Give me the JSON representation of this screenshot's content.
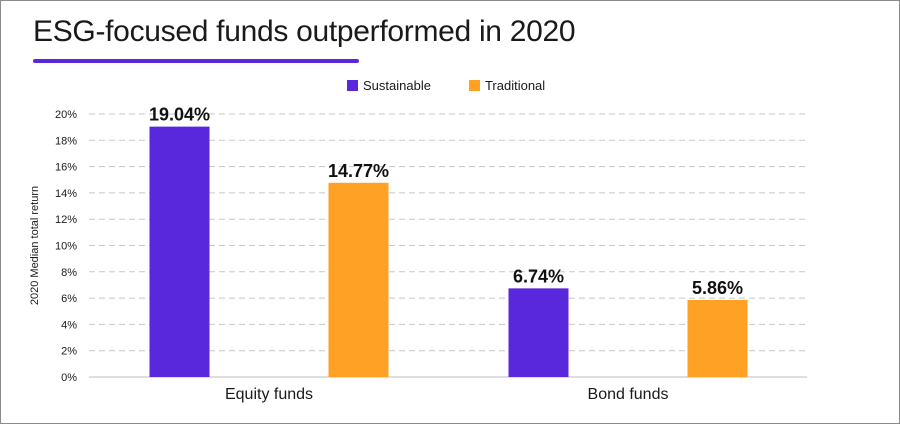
{
  "title": "ESG-focused funds outperformed in 2020",
  "colors": {
    "accent": "#5a28dc",
    "sustainable": "#5a28dc",
    "traditional": "#ffa125",
    "grid": "#c8c8c8",
    "text": "#1a1a1a"
  },
  "chart_data": {
    "type": "bar",
    "title": "ESG-focused funds outperformed in 2020",
    "xlabel": "",
    "ylabel": "2020 Median total return",
    "categories": [
      "Equity funds",
      "Bond funds"
    ],
    "series": [
      {
        "name": "Sustainable",
        "values": [
          19.04,
          6.74
        ],
        "labels": [
          "19.04%",
          "6.74%"
        ]
      },
      {
        "name": "Traditional",
        "values": [
          14.77,
          5.86
        ],
        "labels": [
          "14.77%",
          "5.86%"
        ]
      }
    ],
    "ylim": [
      0,
      20
    ],
    "yticks": [
      "0%",
      "2%",
      "4%",
      "6%",
      "8%",
      "10%",
      "12%",
      "14%",
      "16%",
      "18%",
      "20%"
    ],
    "grid": true,
    "legend_position": "top-center"
  }
}
